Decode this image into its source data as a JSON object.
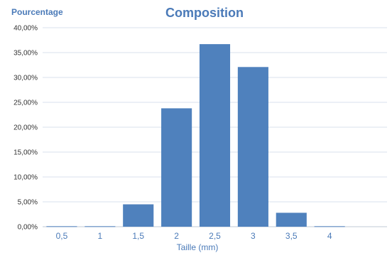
{
  "chart_data": {
    "type": "bar",
    "title": "Composition",
    "ylabel": "Pourcentage",
    "xlabel": "Taille (mm)",
    "categories": [
      "0,5",
      "1",
      "1,5",
      "2",
      "2,5",
      "3",
      "3,5",
      "4",
      ""
    ],
    "values": [
      0.1,
      0.1,
      4.5,
      23.8,
      36.7,
      32.1,
      2.8,
      0.1,
      0
    ],
    "ylim": [
      0,
      40
    ],
    "yticks": [
      {
        "value": 0,
        "label": "0,00%"
      },
      {
        "value": 5,
        "label": "5,00%"
      },
      {
        "value": 10,
        "label": "10,00%"
      },
      {
        "value": 15,
        "label": "15,00%"
      },
      {
        "value": 20,
        "label": "20,00%"
      },
      {
        "value": 25,
        "label": "25,00%"
      },
      {
        "value": 30,
        "label": "30,00%"
      },
      {
        "value": 35,
        "label": "35,00%"
      },
      {
        "value": 40,
        "label": "40,00%"
      }
    ],
    "grid": true,
    "legend": "none",
    "bar_color": "#4f81bd",
    "text_color": "#4a7ab8"
  }
}
